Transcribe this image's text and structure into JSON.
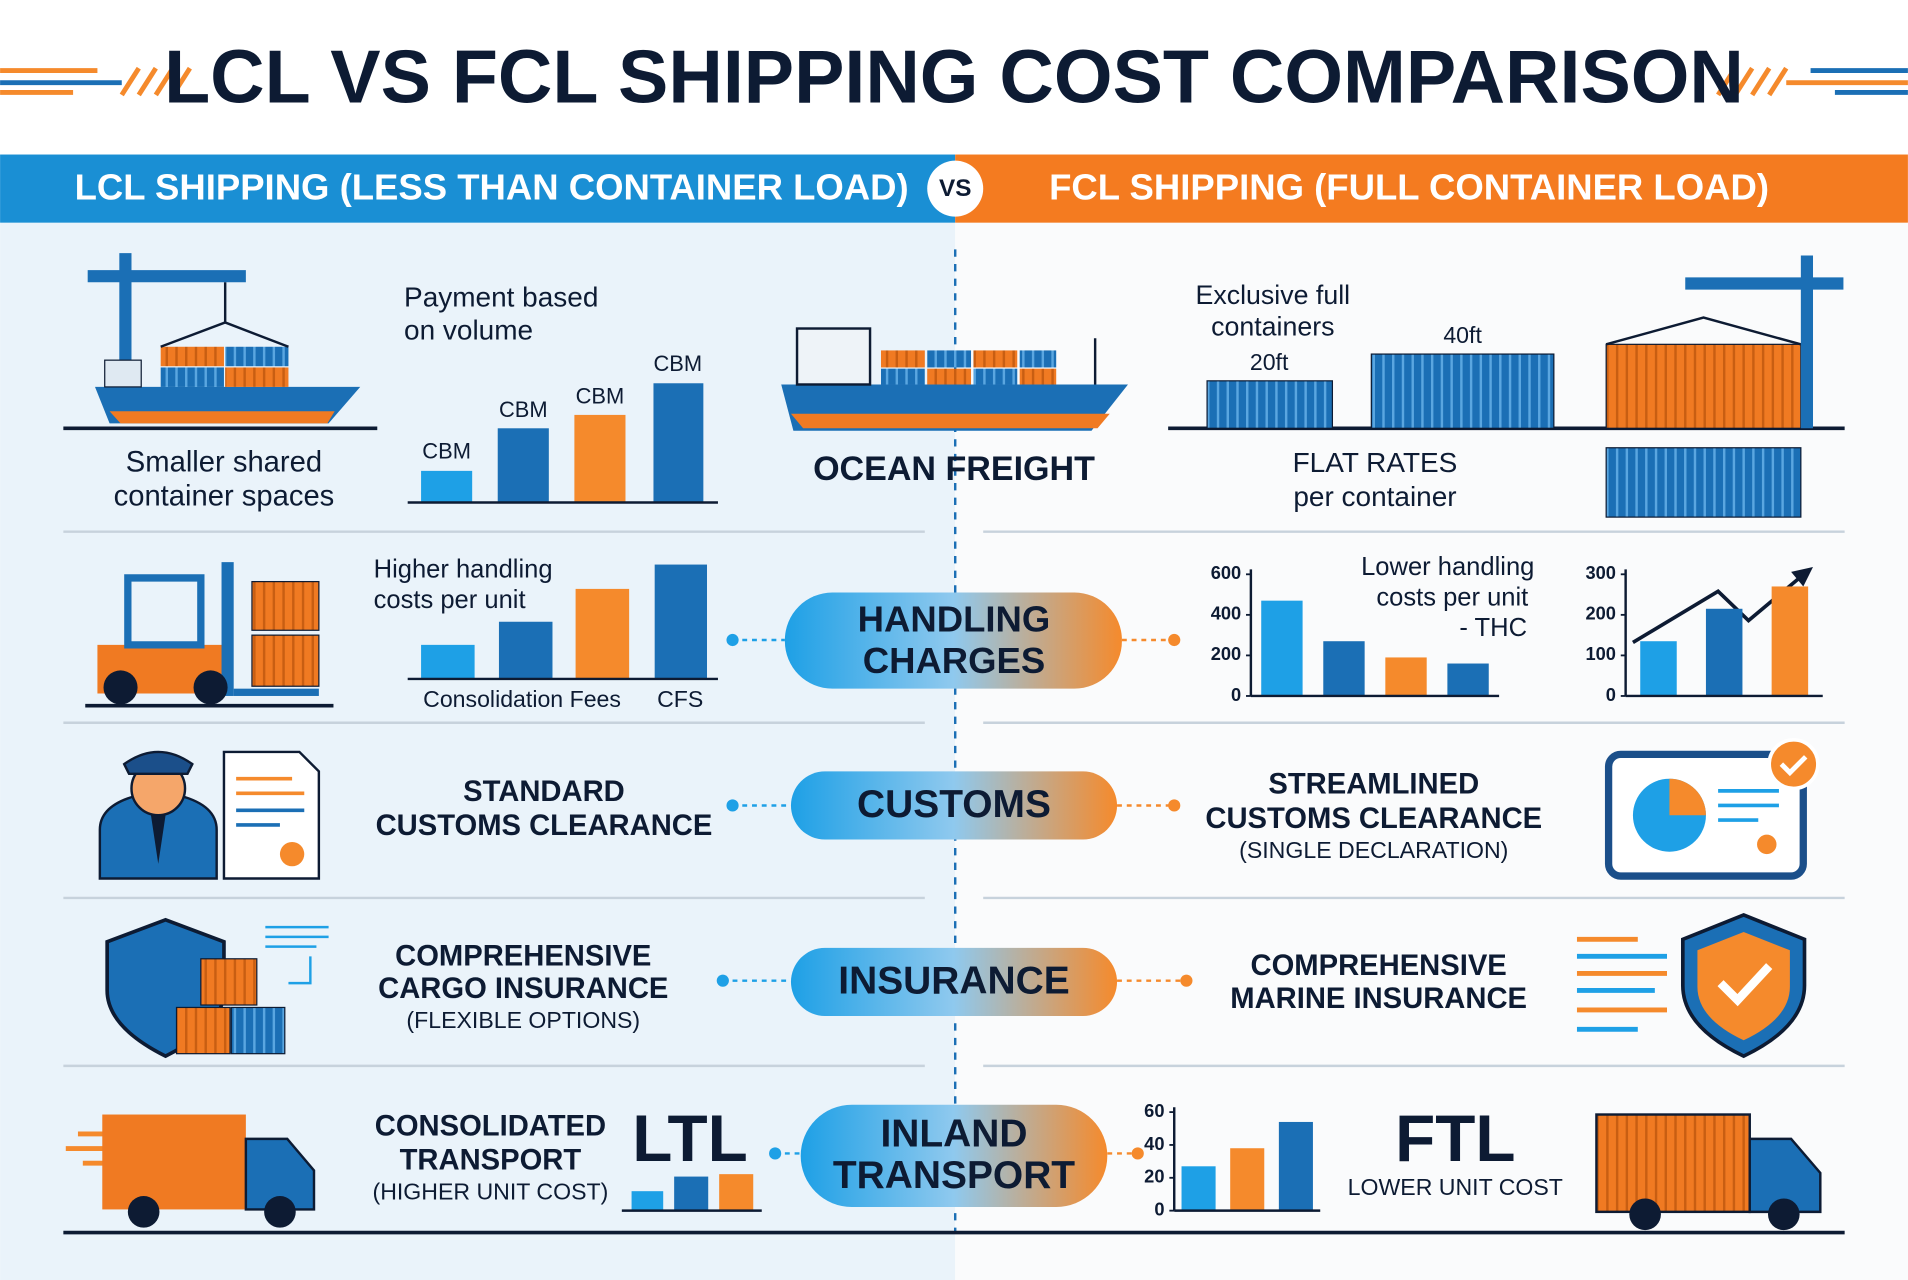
{
  "title": "LCL VS FCL SHIPPING COST COMPARISON",
  "lcl_header": "LCL SHIPPING (LESS THAN CONTAINER LOAD)",
  "vs": "VS",
  "fcl_header": "FCL SHIPPING (FULL CONTAINER LOAD)",
  "rows": [
    {
      "label": [
        "OCEAN FREIGHT"
      ],
      "lcl": {
        "caption": [
          "Smaller shared",
          "container spaces"
        ],
        "note": [
          "Payment based",
          "on volume"
        ],
        "bar_labels": [
          "CBM",
          "CBM",
          "CBM",
          "CBM"
        ]
      },
      "fcl": {
        "note": [
          "Exclusive full",
          "containers"
        ],
        "sizes": [
          "20ft",
          "40ft"
        ],
        "caption": [
          "FLAT RATES",
          "per container"
        ]
      }
    },
    {
      "label": [
        "HANDLING",
        "CHARGES"
      ],
      "lcl": {
        "note": [
          "Higher handling",
          "costs per unit"
        ],
        "bar_labels": [
          "Consolidation Fees",
          "CFS"
        ]
      },
      "fcl": {
        "note": [
          "Lower handling",
          "costs per unit",
          "- THC"
        ],
        "chart_a": {
          "type": "bar",
          "ylim": [
            0,
            600
          ],
          "yticks": [
            0,
            200,
            400,
            600
          ],
          "values": [
            470,
            270,
            190,
            160
          ],
          "colors": [
            "#1ea0e6",
            "#1b6fb5",
            "#f58a2c",
            "#1b6fb5"
          ]
        },
        "chart_b": {
          "type": "bar",
          "ylim": [
            0,
            300
          ],
          "yticks": [
            0,
            100,
            200,
            300
          ],
          "values": [
            135,
            215,
            270
          ],
          "colors": [
            "#1ea0e6",
            "#1b6fb5",
            "#f58a2c"
          ]
        }
      }
    },
    {
      "label": [
        "CUSTOMS"
      ],
      "lcl": {
        "caption": [
          "STANDARD",
          "CUSTOMS CLEARANCE"
        ]
      },
      "fcl": {
        "caption": [
          "STREAMLINED",
          "CUSTOMS CLEARANCE"
        ],
        "sub": "(SINGLE DECLARATION)"
      }
    },
    {
      "label": [
        "INSURANCE"
      ],
      "lcl": {
        "caption": [
          "COMPREHENSIVE",
          "CARGO INSURANCE"
        ],
        "sub": "(FLEXIBLE OPTIONS)"
      },
      "fcl": {
        "caption": [
          "COMPREHENSIVE",
          "MARINE INSURANCE"
        ]
      }
    },
    {
      "label": [
        "INLAND",
        "TRANSPORT"
      ],
      "lcl": {
        "caption": [
          "CONSOLIDATED",
          "TRANSPORT"
        ],
        "sub": "(HIGHER UNIT COST)",
        "mode": "LTL"
      },
      "fcl": {
        "mode": "FTL",
        "sub": "LOWER UNIT COST",
        "chart": {
          "type": "bar",
          "ylim": [
            0,
            60
          ],
          "yticks": [
            0,
            20,
            40,
            60
          ],
          "values": [
            27,
            38,
            54
          ],
          "colors": [
            "#1ea0e6",
            "#f58a2c",
            "#1b6fb5"
          ]
        }
      }
    }
  ]
}
